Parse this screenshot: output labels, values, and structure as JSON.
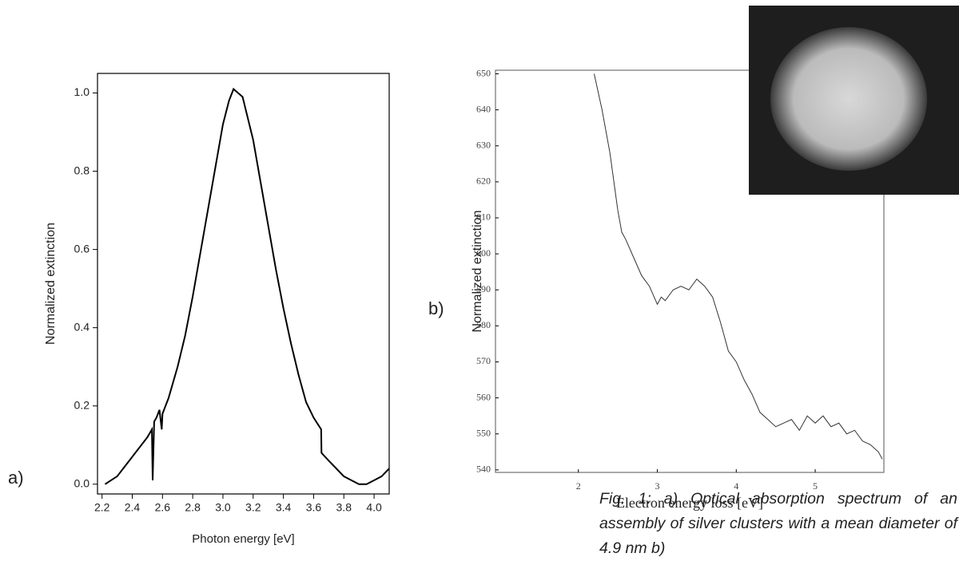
{
  "chart_data": [
    {
      "type": "line",
      "panel": "a)",
      "xlabel": "Photon energy [eV]",
      "ylabel": "Normalized extinction",
      "color": "#000000",
      "x": [
        2.22,
        2.26,
        2.3,
        2.34,
        2.38,
        2.42,
        2.46,
        2.5,
        2.53,
        2.535,
        2.545,
        2.56,
        2.58,
        2.595,
        2.6,
        2.64,
        2.7,
        2.75,
        2.8,
        2.85,
        2.9,
        2.95,
        3.0,
        3.04,
        3.07,
        3.1,
        3.13,
        3.2,
        3.25,
        3.3,
        3.35,
        3.4,
        3.45,
        3.5,
        3.55,
        3.6,
        3.65,
        3.652,
        3.7,
        3.75,
        3.8,
        3.85,
        3.9,
        3.95,
        4.0,
        4.05,
        4.1
      ],
      "values": [
        0.0,
        0.01,
        0.02,
        0.04,
        0.06,
        0.08,
        0.1,
        0.12,
        0.14,
        0.01,
        0.16,
        0.17,
        0.19,
        0.14,
        0.18,
        0.22,
        0.3,
        0.38,
        0.48,
        0.59,
        0.7,
        0.81,
        0.92,
        0.98,
        1.01,
        1.0,
        0.99,
        0.88,
        0.77,
        0.66,
        0.55,
        0.45,
        0.36,
        0.28,
        0.21,
        0.17,
        0.14,
        0.08,
        0.06,
        0.04,
        0.02,
        0.01,
        0.0,
        0.0,
        0.01,
        0.02,
        0.04
      ],
      "xlim": [
        2.17,
        4.1
      ],
      "ylim": [
        -0.025,
        1.05
      ],
      "xticks": [
        2.2,
        2.4,
        2.6,
        2.8,
        {
          "value": 3.0,
          "label": "3.0"
        },
        3.2,
        3.4,
        3.6,
        3.8,
        {
          "value": 4.0,
          "label": "4.0"
        }
      ],
      "yticks": [
        {
          "value": 0.0,
          "label": "0.0"
        },
        0.2,
        0.4,
        0.6,
        0.8,
        {
          "value": 1.0,
          "label": "1.0"
        }
      ]
    },
    {
      "type": "line",
      "panel": "b)",
      "xlabel": "Electron energy loss [eV]",
      "ylabel": "Normalized extinction",
      "color": "#333333",
      "x": [
        2.2,
        2.3,
        2.4,
        2.45,
        2.5,
        2.55,
        2.6,
        2.7,
        2.8,
        2.9,
        3.0,
        3.05,
        3.1,
        3.2,
        3.3,
        3.4,
        3.5,
        3.6,
        3.7,
        3.8,
        3.9,
        4.0,
        4.1,
        4.2,
        4.3,
        4.4,
        4.5,
        4.6,
        4.7,
        4.8,
        4.9,
        5.0,
        5.1,
        5.2,
        5.3,
        5.4,
        5.5,
        5.6,
        5.7,
        5.8,
        5.85
      ],
      "values": [
        650,
        640,
        628,
        620,
        612,
        606,
        604,
        599,
        594,
        591,
        586,
        588,
        587,
        590,
        591,
        590,
        593,
        591,
        588,
        581,
        573,
        570,
        565,
        561,
        556,
        554,
        552,
        553,
        554,
        551,
        555,
        553,
        555,
        552,
        553,
        550,
        551,
        548,
        547,
        545,
        543
      ],
      "xlim": [
        0.95,
        5.87
      ],
      "ylim": [
        539.3,
        651
      ],
      "xticks": [
        2,
        3,
        4,
        5
      ],
      "yticks": [
        540,
        550,
        560,
        570,
        580,
        590,
        600,
        610,
        620,
        630,
        640,
        650
      ]
    }
  ],
  "caption": "Fig. 1: a) Optical absorption spectrum of an assembly of silver clusters with a mean diameter of 4.9 nm b)"
}
